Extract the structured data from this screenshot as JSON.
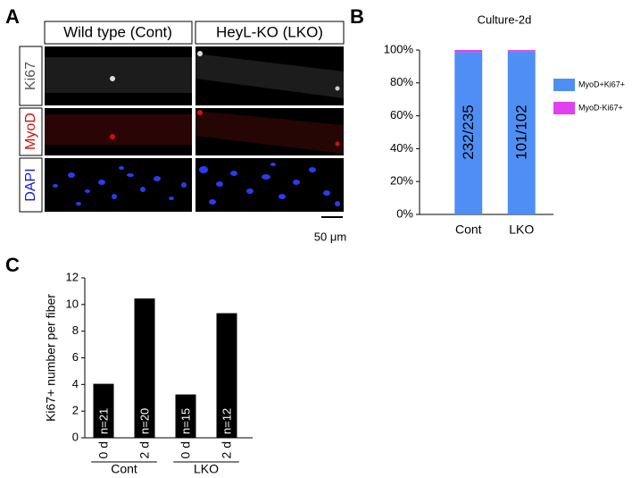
{
  "panel_labels": [
    "A",
    "B",
    "C"
  ],
  "panel_a": {
    "columns": [
      "Wild type (Cont)",
      "HeyL-KO (LKO)"
    ],
    "rows": [
      "Ki67",
      "MyoD",
      "DAPI"
    ],
    "scale_bar": "50 μm"
  },
  "chart_data": [
    {
      "type": "bar",
      "stacked": true,
      "title": "Culture-2d",
      "categories": [
        "Cont",
        "LKO"
      ],
      "series": [
        {
          "name": "MyoD+Ki67+",
          "color": "#4f8ff5",
          "values": [
            98.7,
            99.0
          ]
        },
        {
          "name": "MyoD-Ki67+",
          "color": "#e040f0",
          "values": [
            1.3,
            1.0
          ]
        }
      ],
      "annotations": [
        "232/235",
        "101/102"
      ],
      "ylim": [
        0,
        100
      ],
      "yticks": [
        {
          "value": 0,
          "label": "0%"
        },
        {
          "value": 20,
          "label": "20%"
        },
        {
          "value": 40,
          "label": "40%"
        },
        {
          "value": 60,
          "label": "60%"
        },
        {
          "value": 80,
          "label": "80%"
        },
        {
          "value": 100,
          "label": "100%"
        }
      ],
      "legend": "right"
    },
    {
      "type": "bar",
      "ylabel": "Ki67+ number per fiber",
      "categories": [
        "0 d",
        "2 d",
        "0 d",
        "2 d"
      ],
      "groups": [
        "Cont",
        "LKO"
      ],
      "values": [
        4.05,
        10.45,
        3.25,
        9.35
      ],
      "color": "#000000",
      "annotations": [
        "n=21",
        "n=20",
        "n=15",
        "n=12"
      ],
      "ylim": [
        0,
        12
      ],
      "yticks": [
        0,
        2,
        4,
        6,
        8,
        10,
        12
      ]
    }
  ]
}
